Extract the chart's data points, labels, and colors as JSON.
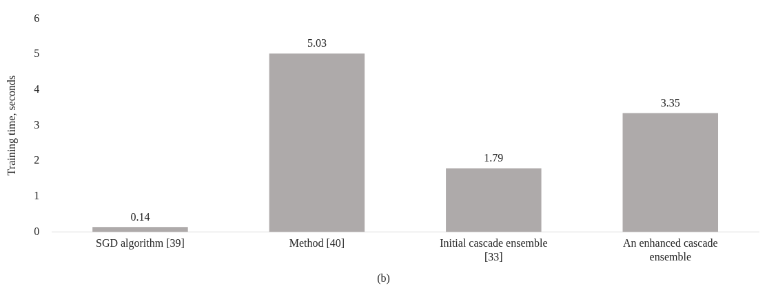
{
  "chart_data": {
    "type": "bar",
    "ylabel": "Training time, seconds",
    "categories": [
      "SGD algorithm [39]",
      "Method [40]",
      "Initial cascade ensemble [33]",
      "An enhanced cascade ensemble"
    ],
    "values": [
      0.14,
      5.03,
      1.79,
      3.35
    ],
    "color": "#aeaaaa",
    "data_labels": true,
    "ylim": [
      0,
      6
    ],
    "yticks": [
      0,
      1,
      2,
      3,
      4,
      5,
      6
    ],
    "grid": false,
    "legend": false,
    "annotations": [
      "(b)"
    ]
  }
}
